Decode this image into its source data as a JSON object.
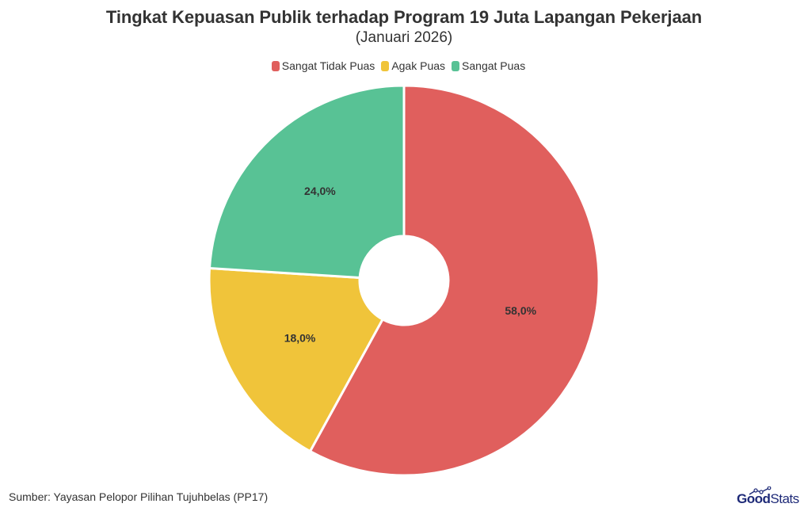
{
  "title": "Tingkat Kepuasan Publik terhadap Program 19 Juta Lapangan Pekerjaan",
  "subtitle": "(Januari 2026)",
  "legend": [
    {
      "label": "Sangat Tidak Puas",
      "color": "#E05F5D"
    },
    {
      "label": "Agak Puas",
      "color": "#F0C43A"
    },
    {
      "label": "Sangat Puas",
      "color": "#58C295"
    }
  ],
  "source": "Sumber: Yayasan Pelopor Pilihan Tujuhbelas (PP17)",
  "logo": {
    "bold": "Good",
    "light": "Stats"
  },
  "chart_data": {
    "type": "pie",
    "variant": "donut",
    "title": "Tingkat Kepuasan Publik terhadap Program 19 Juta Lapangan Pekerjaan",
    "subtitle": "(Januari 2026)",
    "categories": [
      "Sangat Tidak Puas",
      "Agak Puas",
      "Sangat Puas"
    ],
    "values": [
      58.0,
      18.0,
      24.0
    ],
    "labels": [
      "58,0%",
      "18,0%",
      "24,0%"
    ],
    "colors": [
      "#E05F5D",
      "#F0C43A",
      "#58C295"
    ],
    "unit": "%",
    "start_angle_deg": 0,
    "direction": "clockwise",
    "legend_position": "top",
    "source": "Sumber: Yayasan Pelopor Pilihan Tujuhbelas (PP17)"
  }
}
